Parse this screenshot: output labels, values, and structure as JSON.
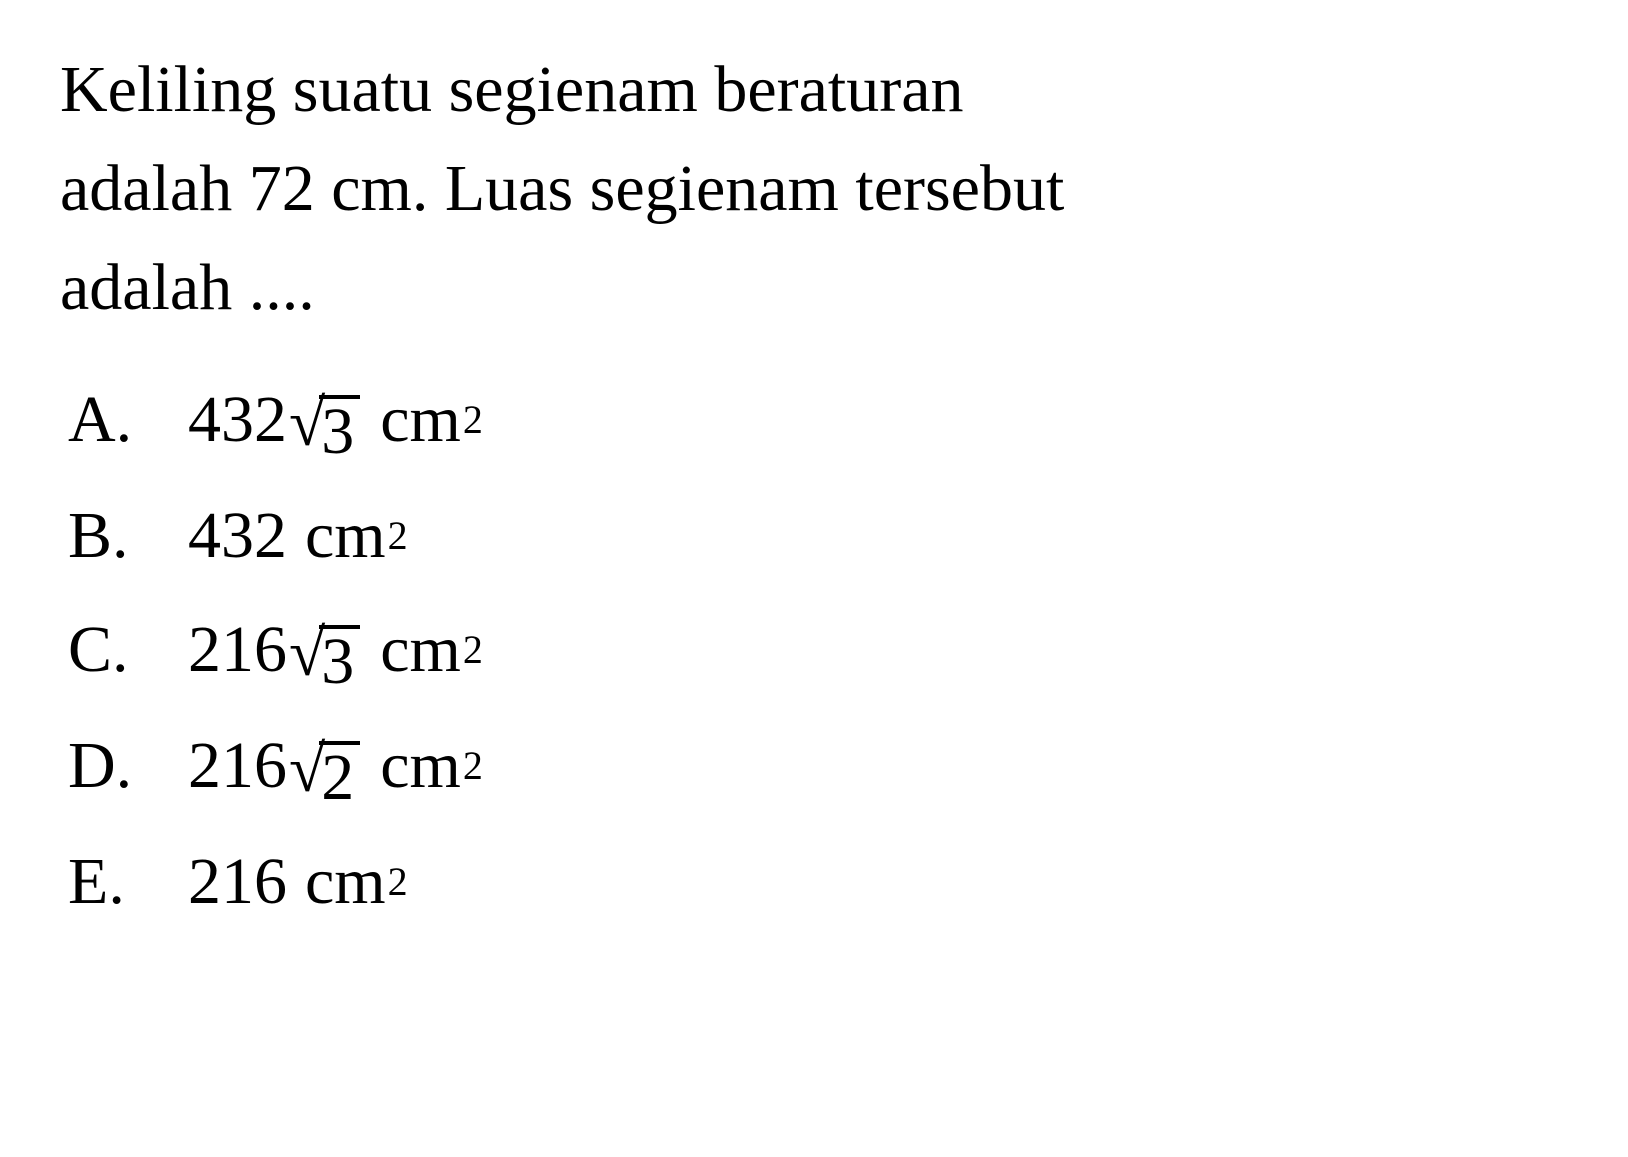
{
  "question": {
    "line1": "Keliling suatu segienam beraturan",
    "line2": "adalah 72 cm. Luas segienam tersebut",
    "line3": "adalah ....",
    "full": "Keliling suatu segienam beraturan adalah 72 cm. Luas segienam tersebut adalah ...."
  },
  "options": [
    {
      "letter": "A.",
      "coefficient": "432",
      "has_sqrt": true,
      "radicand": "3",
      "unit": "cm",
      "exponent": "2"
    },
    {
      "letter": "B.",
      "coefficient": "432",
      "has_sqrt": false,
      "radicand": "",
      "unit": "cm",
      "exponent": "2"
    },
    {
      "letter": "C.",
      "coefficient": "216",
      "has_sqrt": true,
      "radicand": "3",
      "unit": "cm",
      "exponent": "2"
    },
    {
      "letter": "D.",
      "coefficient": "216",
      "has_sqrt": true,
      "radicand": "2",
      "unit": "cm",
      "exponent": "2"
    },
    {
      "letter": "E.",
      "coefficient": "216",
      "has_sqrt": false,
      "radicand": "",
      "unit": "cm",
      "exponent": "2"
    }
  ],
  "styling": {
    "background_color": "#ffffff",
    "text_color": "#000000",
    "font_family": "Times New Roman",
    "question_fontsize": 66,
    "option_fontsize": 66,
    "superscript_fontsize": 40,
    "sqrt_bar_weight": 4
  }
}
